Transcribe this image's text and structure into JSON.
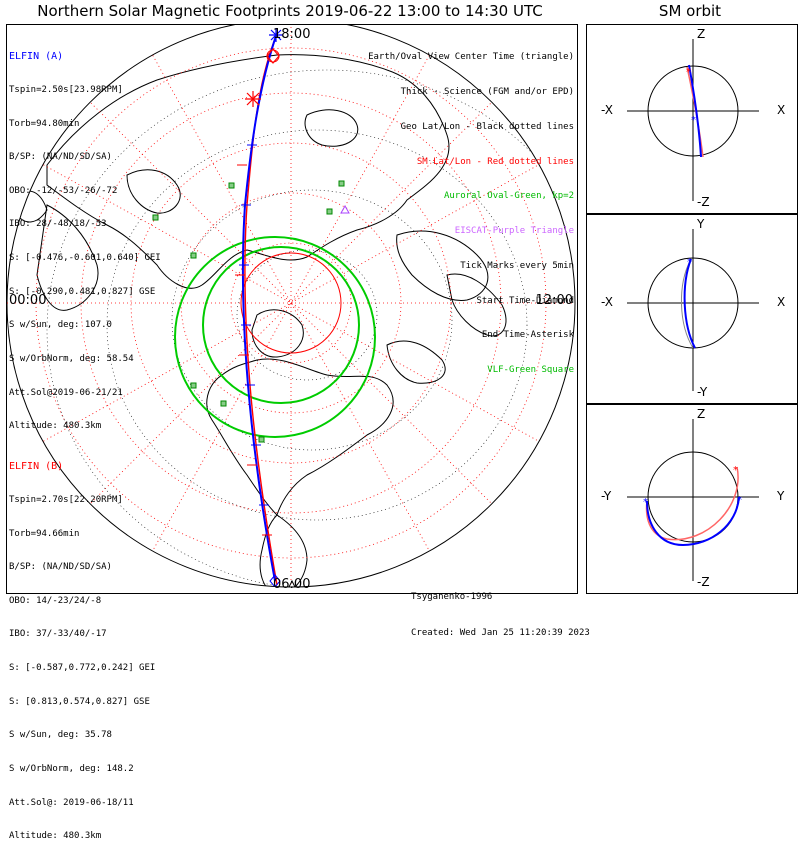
{
  "title": "Northern Solar Magnetic Footprints 2019-06-22 13:00 to 14:30 UTC",
  "sm_orbit_title": "SM orbit",
  "map": {
    "time_labels": {
      "top": "18:00",
      "left": "00:00",
      "right": "12:00",
      "bottom": "06:00"
    },
    "colors": {
      "elfin_a": "#0000ff",
      "elfin_b": "#ff0000",
      "aurora": "#00cc00",
      "latlon_sm": "#ff0000",
      "latlon_geo": "#000000",
      "vlf": "#00cc00",
      "eiscat": "#aa44ff"
    }
  },
  "elfin_a": {
    "name": "ELFIN (A)",
    "lines": [
      "Tspin=2.50s[23.98RPM]",
      "Torb=94.80min",
      "B/SP: (NA/ND/SD/SA)",
      "OBO: -12/-53/-26/-72",
      "IBO: 28/-48/18/-53",
      "S: [-0.476,-0.601,0.640] GEI",
      "S: [-0.290,0.481,0.827] GSE",
      "S w/Sun, deg: 107.0",
      "S w/OrbNorm, deg: 58.54",
      "Att.Sol@2019-06-21/21",
      "Altitude: 480.3km"
    ]
  },
  "elfin_b": {
    "name": "ELFIN (B)",
    "lines": [
      "Tspin=2.70s[22.20RPM]",
      "Torb=94.66min",
      "B/SP: (NA/ND/SD/SA)",
      "OBO: 14/-23/24/-8",
      "IBO: 37/-33/40/-17",
      "S: [-0.587,0.772,0.242] GEI",
      "S: [0.813,0.574,0.827] GSE",
      "S w/Sun, deg: 35.78",
      "S w/OrbNorm, deg: 148.2",
      "Att.Sol@: 2019-06-18/11",
      "Altitude: 480.3km"
    ]
  },
  "legend": [
    {
      "text": "Earth/Oval View Center Time (triangle)",
      "color": "#000000"
    },
    {
      "text": "Thick - Science (FGM and/or EPD)",
      "color": "#000000"
    },
    {
      "text": "Geo Lat/Lon - Black dotted lines",
      "color": "#000000"
    },
    {
      "text": "SM Lat/Lon - Red dotted lines",
      "color": "#ff0000"
    },
    {
      "text": "Auroral Oval-Green, kp=2",
      "color": "#00bb00"
    },
    {
      "text": "EISCAT-Purple Triangle",
      "color": "#cc66ff"
    },
    {
      "text": "Tick Marks every 5min",
      "color": "#000000"
    },
    {
      "text": "Start Time-Diamond",
      "color": "#000000"
    },
    {
      "text": "End Time-Asterisk",
      "color": "#000000"
    },
    {
      "text": "VLF-Green Square",
      "color": "#00bb00"
    }
  ],
  "credit": {
    "model": "Tsyganenko-1996",
    "created": "Created: Wed Jan 25 11:20:39 2023"
  },
  "orbit_panels": [
    {
      "top_label": "Z",
      "bottom_label": "-Z",
      "left_label": "-X",
      "right_label": "X"
    },
    {
      "top_label": "Y",
      "bottom_label": "-Y",
      "left_label": "-X",
      "right_label": "X"
    },
    {
      "top_label": "Z",
      "bottom_label": "-Z",
      "left_label": "-Y",
      "right_label": "Y"
    }
  ]
}
